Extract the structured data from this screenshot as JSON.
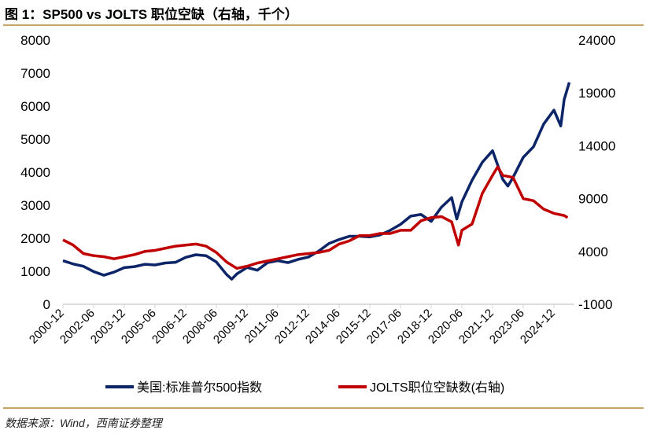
{
  "title": "图 1：SP500 vs JOLTS 职位空缺（右轴，千个）",
  "source": "数据来源：Wind，西南证券整理",
  "chart_data": {
    "type": "line",
    "title": "SP500 vs JOLTS 职位空缺（右轴，千个）",
    "y_left": {
      "ticks": [
        "0",
        "1000",
        "2000",
        "3000",
        "4000",
        "5000",
        "6000",
        "7000",
        "8000"
      ],
      "range": [
        0,
        8000
      ]
    },
    "y_right": {
      "ticks": [
        "-1000",
        "4000",
        "9000",
        "14000",
        "19000",
        "24000"
      ],
      "range": [
        -1000,
        24000
      ]
    },
    "x_ticks": [
      "2000-12",
      "2002-06",
      "2003-12",
      "2005-06",
      "2006-12",
      "2008-06",
      "2009-12",
      "2011-06",
      "2012-12",
      "2014-06",
      "2015-12",
      "2017-06",
      "2018-12",
      "2020-06",
      "2021-12",
      "2023-06",
      "2024-12"
    ],
    "legend_position": "bottom",
    "series": [
      {
        "name": "美国:标准普尔500指数",
        "axis": "left",
        "color": "#0c2468",
        "x": [
          "2000-12",
          "2001-06",
          "2001-12",
          "2002-06",
          "2002-12",
          "2003-06",
          "2003-12",
          "2004-06",
          "2004-12",
          "2005-06",
          "2005-12",
          "2006-06",
          "2006-12",
          "2007-06",
          "2007-12",
          "2008-06",
          "2008-12",
          "2009-03",
          "2009-06",
          "2009-12",
          "2010-06",
          "2010-12",
          "2011-06",
          "2011-12",
          "2012-06",
          "2012-12",
          "2013-06",
          "2013-12",
          "2014-06",
          "2014-12",
          "2015-06",
          "2015-12",
          "2016-06",
          "2016-12",
          "2017-06",
          "2017-12",
          "2018-06",
          "2018-12",
          "2019-06",
          "2019-12",
          "2020-03",
          "2020-06",
          "2020-12",
          "2021-06",
          "2021-12",
          "2022-06",
          "2022-09",
          "2022-12",
          "2023-06",
          "2023-12",
          "2024-06",
          "2024-12",
          "2025-04",
          "2025-06",
          "2025-09"
        ],
        "values": [
          1320,
          1220,
          1150,
          990,
          880,
          975,
          1110,
          1140,
          1210,
          1190,
          1250,
          1270,
          1420,
          1500,
          1470,
          1280,
          900,
          760,
          920,
          1115,
          1030,
          1260,
          1320,
          1260,
          1360,
          1430,
          1610,
          1840,
          1960,
          2060,
          2060,
          2040,
          2100,
          2240,
          2420,
          2670,
          2720,
          2510,
          2940,
          3230,
          2580,
          3100,
          3760,
          4300,
          4650,
          3780,
          3580,
          3840,
          4450,
          4770,
          5460,
          5880,
          5400,
          6200,
          6720
        ]
      },
      {
        "name": "JOLTS职位空缺数(右轴)",
        "axis": "right",
        "color": "#c00000",
        "x": [
          "2000-12",
          "2001-06",
          "2001-12",
          "2002-06",
          "2002-12",
          "2003-06",
          "2003-12",
          "2004-06",
          "2004-12",
          "2005-06",
          "2005-12",
          "2006-06",
          "2006-12",
          "2007-06",
          "2007-12",
          "2008-06",
          "2008-12",
          "2009-06",
          "2009-12",
          "2010-06",
          "2010-12",
          "2011-06",
          "2011-12",
          "2012-06",
          "2012-12",
          "2013-06",
          "2013-12",
          "2014-06",
          "2014-12",
          "2015-06",
          "2015-12",
          "2016-06",
          "2016-12",
          "2017-06",
          "2017-12",
          "2018-06",
          "2018-12",
          "2019-06",
          "2019-12",
          "2020-04",
          "2020-06",
          "2020-12",
          "2021-06",
          "2021-12",
          "2022-03",
          "2022-06",
          "2022-12",
          "2023-06",
          "2023-12",
          "2024-06",
          "2024-12",
          "2025-06",
          "2025-08"
        ],
        "values": [
          5100,
          4600,
          3800,
          3600,
          3500,
          3300,
          3500,
          3700,
          4000,
          4100,
          4300,
          4500,
          4600,
          4700,
          4500,
          3900,
          3000,
          2400,
          2600,
          2900,
          3100,
          3300,
          3500,
          3700,
          3800,
          3900,
          4100,
          4700,
          5000,
          5500,
          5500,
          5700,
          5700,
          6000,
          6000,
          6900,
          7200,
          7300,
          6800,
          4600,
          6000,
          6600,
          9500,
          11200,
          12000,
          11200,
          11000,
          9000,
          8800,
          8000,
          7600,
          7400,
          7200
        ]
      }
    ]
  }
}
